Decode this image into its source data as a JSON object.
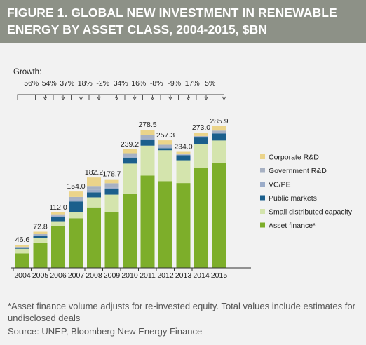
{
  "header": {
    "title": "FIGURE 1. GLOBAL NEW INVESTMENT IN RENEWABLE ENERGY BY ASSET CLASS, 2004-2015, $BN"
  },
  "footnote": "*Asset finance volume adjusts for re-invested equity.  Total values include estimates for undisclosed deals",
  "source": "Source: UNEP, Bloomberg New Energy Finance",
  "colors": {
    "header_bg": "#8d9187",
    "panel_bg": "#f2f2f2",
    "Corporate R&D": "#ebd48a",
    "Government R&D": "#a7b1c3",
    "VC/PE": "#9bacc9",
    "Public markets": "#1b5f8c",
    "Small distributed capacity": "#d4e4ad",
    "Asset finance*": "#7dae2a"
  },
  "chart_data": {
    "type": "bar",
    "stacked": true,
    "categories": [
      "2004",
      "2005",
      "2006",
      "2007",
      "2008",
      "2009",
      "2010",
      "2011",
      "2012",
      "2013",
      "2014",
      "2015"
    ],
    "totals": [
      46.6,
      72.8,
      112.0,
      154.0,
      182.2,
      178.7,
      239.2,
      278.5,
      257.3,
      234.0,
      273.0,
      285.9
    ],
    "total_labels": [
      "46.6",
      "72.8",
      "112.0",
      "154.0",
      "182.2",
      "178.7",
      "239.2",
      "278.5",
      "257.3",
      "234.0",
      "273.0",
      "285.9"
    ],
    "growth_title": "Growth:",
    "growth_labels": [
      "56%",
      "54%",
      "37%",
      "18%",
      "-2%",
      "34%",
      "16%",
      "-8%",
      "-9%",
      "17%",
      "5%"
    ],
    "series": [
      {
        "name": "Asset finance*",
        "values": [
          29.0,
          51.0,
          85.0,
          100.0,
          122.0,
          113.0,
          150.0,
          186.0,
          175.0,
          171.0,
          201.0,
          211.0
        ]
      },
      {
        "name": "Small distributed capacity",
        "values": [
          9.6,
          9.8,
          9.0,
          12.0,
          20.2,
          34.7,
          60.2,
          60.5,
          62.3,
          46.0,
          48.0,
          45.9
        ]
      },
      {
        "name": "Public markets",
        "values": [
          1.0,
          4.0,
          9.0,
          22.0,
          10.0,
          12.0,
          12.0,
          12.0,
          4.0,
          10.0,
          14.0,
          14.0
        ]
      },
      {
        "name": "VC/PE",
        "values": [
          0.5,
          1.0,
          2.0,
          4.0,
          5.0,
          2.0,
          2.5,
          3.0,
          2.0,
          1.0,
          1.5,
          2.0
        ]
      },
      {
        "name": "Government R&D",
        "values": [
          2.5,
          3.0,
          3.0,
          5.0,
          8.0,
          9.0,
          6.5,
          6.0,
          5.0,
          1.5,
          1.5,
          4.0
        ]
      },
      {
        "name": "Corporate R&D",
        "values": [
          4.0,
          4.0,
          4.0,
          11.0,
          17.0,
          8.0,
          8.0,
          11.0,
          9.0,
          4.5,
          7.0,
          9.0
        ]
      }
    ],
    "legend_order": [
      "Corporate R&D",
      "Government R&D",
      "VC/PE",
      "Public markets",
      "Small distributed capacity",
      "Asset finance*"
    ],
    "legend_position": "right",
    "ylim": [
      0,
      300
    ],
    "grid": false
  }
}
